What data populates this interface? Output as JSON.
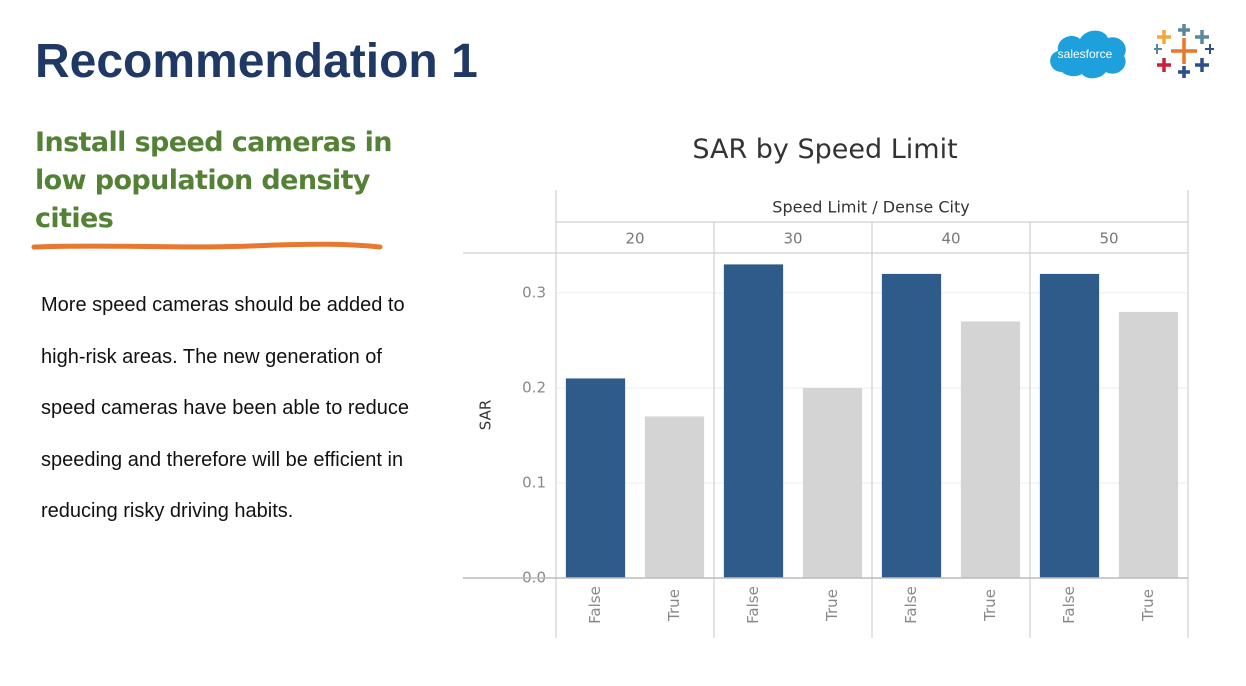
{
  "slide": {
    "title": "Recommendation 1",
    "subtitle": "Install speed cameras in low population density cities",
    "body": "More speed cameras should be added to high-risk areas. The new generation of speed cameras have been able to reduce speeding and therefore will be efficient in reducing risky driving habits.",
    "logo_text": "salesforce"
  },
  "chart_data": {
    "type": "bar",
    "title": "SAR by Speed Limit",
    "group_axis_label": "Speed Limit / Dense City",
    "ylabel": "SAR",
    "groups": [
      "20",
      "30",
      "40",
      "50"
    ],
    "series": [
      {
        "name": "False",
        "color": "#2f5b8a",
        "values": [
          0.21,
          0.33,
          0.32,
          0.32
        ]
      },
      {
        "name": "True",
        "color": "#d4d4d4",
        "values": [
          0.17,
          0.2,
          0.27,
          0.28
        ]
      }
    ],
    "ylim": [
      0,
      0.342
    ],
    "yticks": [
      {
        "value": 0,
        "label": "0.0"
      },
      0.1,
      0.2,
      0.3
    ],
    "grid": true
  }
}
